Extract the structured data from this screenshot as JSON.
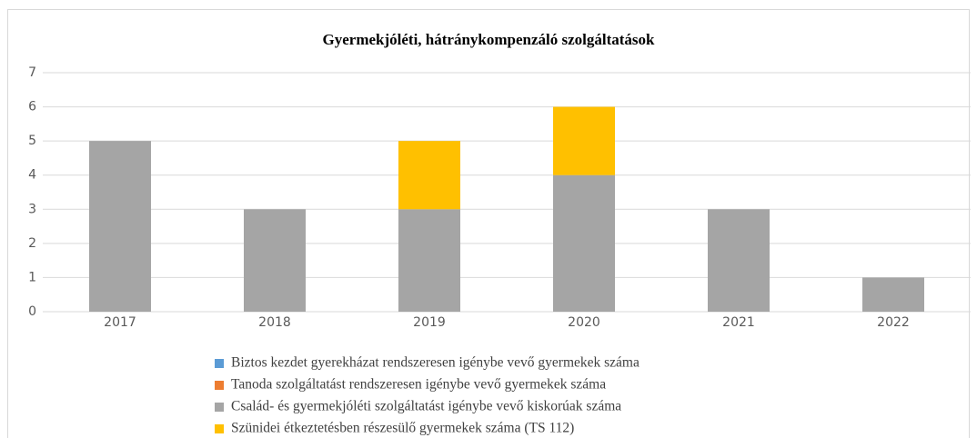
{
  "chart_data": {
    "type": "bar",
    "stacked": true,
    "title": "Gyermekjóléti, hátránykompenzáló szolgáltatások",
    "categories": [
      "2017",
      "2018",
      "2019",
      "2020",
      "2021",
      "2022"
    ],
    "series": [
      {
        "name": "Biztos kezdet gyerekházat rendszeresen igénybe vevő gyermekek száma",
        "color": "#5b9bd5",
        "values": [
          0,
          0,
          0,
          0,
          0,
          0
        ]
      },
      {
        "name": "Tanoda szolgáltatást rendszeresen igénybe vevő gyermekek száma",
        "color": "#ed7d31",
        "values": [
          0,
          0,
          0,
          0,
          0,
          0
        ]
      },
      {
        "name": "Család- és gyermekjóléti szolgáltatást igénybe vevő kiskorúak száma",
        "color": "#a5a5a5",
        "values": [
          5,
          3,
          3,
          4,
          3,
          1
        ]
      },
      {
        "name": "Szünidei étkeztetésben részesülő gyermekek száma (TS 112)",
        "color": "#ffc000",
        "values": [
          0,
          0,
          2,
          2,
          0,
          0
        ]
      }
    ],
    "ylim": [
      0,
      7
    ],
    "yticks": [
      0,
      1,
      2,
      3,
      4,
      5,
      6,
      7
    ],
    "grid": true,
    "legend": "bottom"
  }
}
